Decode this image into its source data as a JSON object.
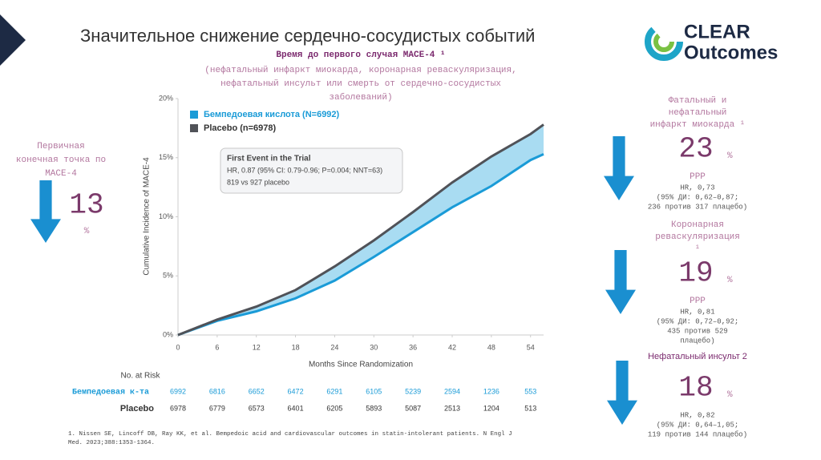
{
  "slide": {
    "title": "Значительное снижение сердечно-сосудистых событий",
    "logo": [
      "CLEAR",
      "Outcomes"
    ],
    "primary": {
      "label": [
        "Первичная",
        "конечная точка по",
        "MACE-4"
      ],
      "number": "13",
      "unit": "%"
    },
    "panels": [
      {
        "title": [
          "Фатальный и",
          "нефатальный",
          "инфаркт миокарда ¹"
        ],
        "number": "23",
        "unit": "%",
        "lines": [
          "РРР",
          "HR, 0,73",
          "(95% ДИ: 0,62–0,87;",
          "236 против 317 плацебо)"
        ]
      },
      {
        "title": [
          "Коронарная",
          "реваскуляризация",
          "¹"
        ],
        "number": "19",
        "unit": "%",
        "lines": [
          "РРР",
          "HR, 0,81",
          "(95% ДИ: 0,72–0,92;",
          "435 против 529",
          "плацебо)"
        ]
      },
      {
        "title": [
          "Нефатальный инсульт 2"
        ],
        "number": "18",
        "unit": "%",
        "lines": [
          "HR, 0,82",
          "(95% ДИ: 0,64–1,05;",
          "119 против 144 плацебо)"
        ]
      }
    ],
    "footnote": [
      "1.  Nissen SE, Lincoff DB, Ray KK, et al. Bempedoic acid and cardiovascular outcomes in statin-intolerant patients. N Engl J",
      "Med. 2023;388:1353-1364."
    ]
  },
  "chart_data": {
    "type": "line",
    "title": "Время до первого случая MACE-4 ¹",
    "subtitle": [
      "(нефатальный инфаркт миокарда, коронарная реваскуляризация,",
      "нефатальный инсульт или смерть от сердечно-сосудистых",
      "заболеваний)"
    ],
    "x_label": "Months Since Randomization",
    "y_label": "Cumulative Incidence of MACE-4",
    "x": [
      0,
      6,
      12,
      18,
      24,
      30,
      36,
      42,
      48,
      54,
      56
    ],
    "series": [
      {
        "name": "Бемпедоевая кислота (N=6992)",
        "color": "#1a9bd7",
        "values": [
          0,
          1.2,
          2.0,
          3.1,
          4.6,
          6.6,
          8.7,
          10.8,
          12.6,
          14.8,
          15.3
        ]
      },
      {
        "name": "Placebo (n=6978)",
        "color": "#505258",
        "values": [
          0,
          1.3,
          2.4,
          3.8,
          5.8,
          8.0,
          10.4,
          12.9,
          15.1,
          17.0,
          17.8
        ]
      }
    ],
    "band_color": "#a9dcf2",
    "legend": "upper left",
    "xlim": [
      0,
      56
    ],
    "xticks": [
      0,
      6,
      12,
      18,
      24,
      30,
      36,
      42,
      48,
      54
    ],
    "ylim": [
      0,
      20
    ],
    "yticks": [
      {
        "value": 0,
        "label": "0%"
      },
      {
        "value": 5,
        "label": "5%"
      },
      {
        "value": 10,
        "label": "10%"
      },
      {
        "value": 15,
        "label": "15%"
      },
      {
        "value": 20,
        "label": "20%"
      }
    ],
    "annotation": [
      "First Event in the Trial",
      "HR, 0.87 (95% CI: 0.79-0.96; P=0.004; NNT=63)",
      "819 vs 927 placebo"
    ],
    "risk_table": {
      "title": "No. at Risk",
      "rows": [
        {
          "label": "Бемпедоевая к-та",
          "values": [
            6992,
            6816,
            6652,
            6472,
            6291,
            6105,
            5239,
            2594,
            1236,
            553
          ]
        },
        {
          "label": "Placebo",
          "values": [
            6978,
            6779,
            6573,
            6401,
            6205,
            5893,
            5087,
            2513,
            1204,
            513
          ]
        }
      ]
    }
  }
}
